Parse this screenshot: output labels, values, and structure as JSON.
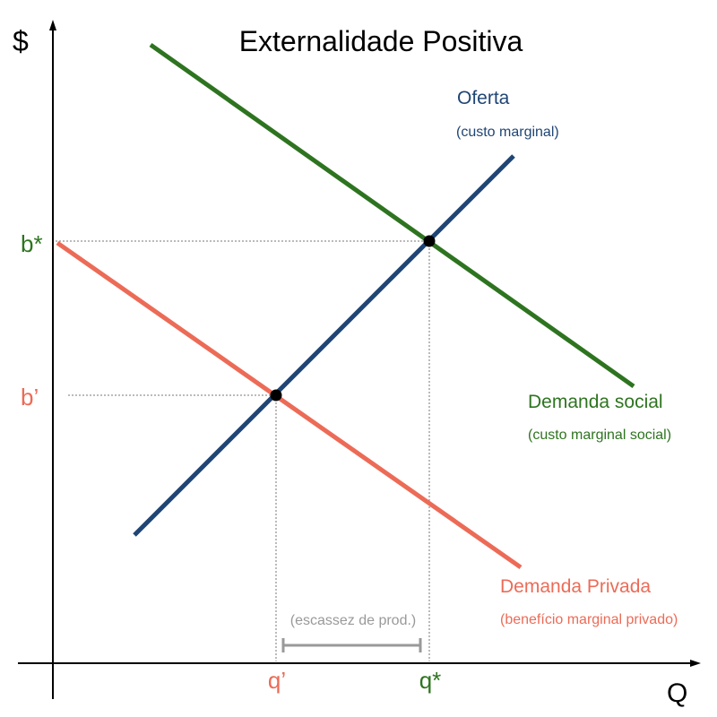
{
  "title": "Externalidade Positiva",
  "axes": {
    "y_label": "$",
    "x_label": "Q"
  },
  "colors": {
    "supply": "#1f4575",
    "social_demand": "#2e7420",
    "private_demand": "#ec6b57",
    "axis": "#000000",
    "guide": "#777777",
    "bracket": "#999999",
    "point": "#000000"
  },
  "curves": {
    "supply": {
      "label": "Oferta",
      "sublabel": "(custo marginal)"
    },
    "social_demand": {
      "label": "Demanda social",
      "sublabel": "(custo marginal social)"
    },
    "private_demand": {
      "label": "Demanda Privada",
      "sublabel": "(benefício marginal privado)"
    }
  },
  "price_levels": {
    "social": "b*",
    "private": "b’"
  },
  "quantity_levels": {
    "private": "q’",
    "social": "q*"
  },
  "gap_label": "(escassez de prod.)"
}
